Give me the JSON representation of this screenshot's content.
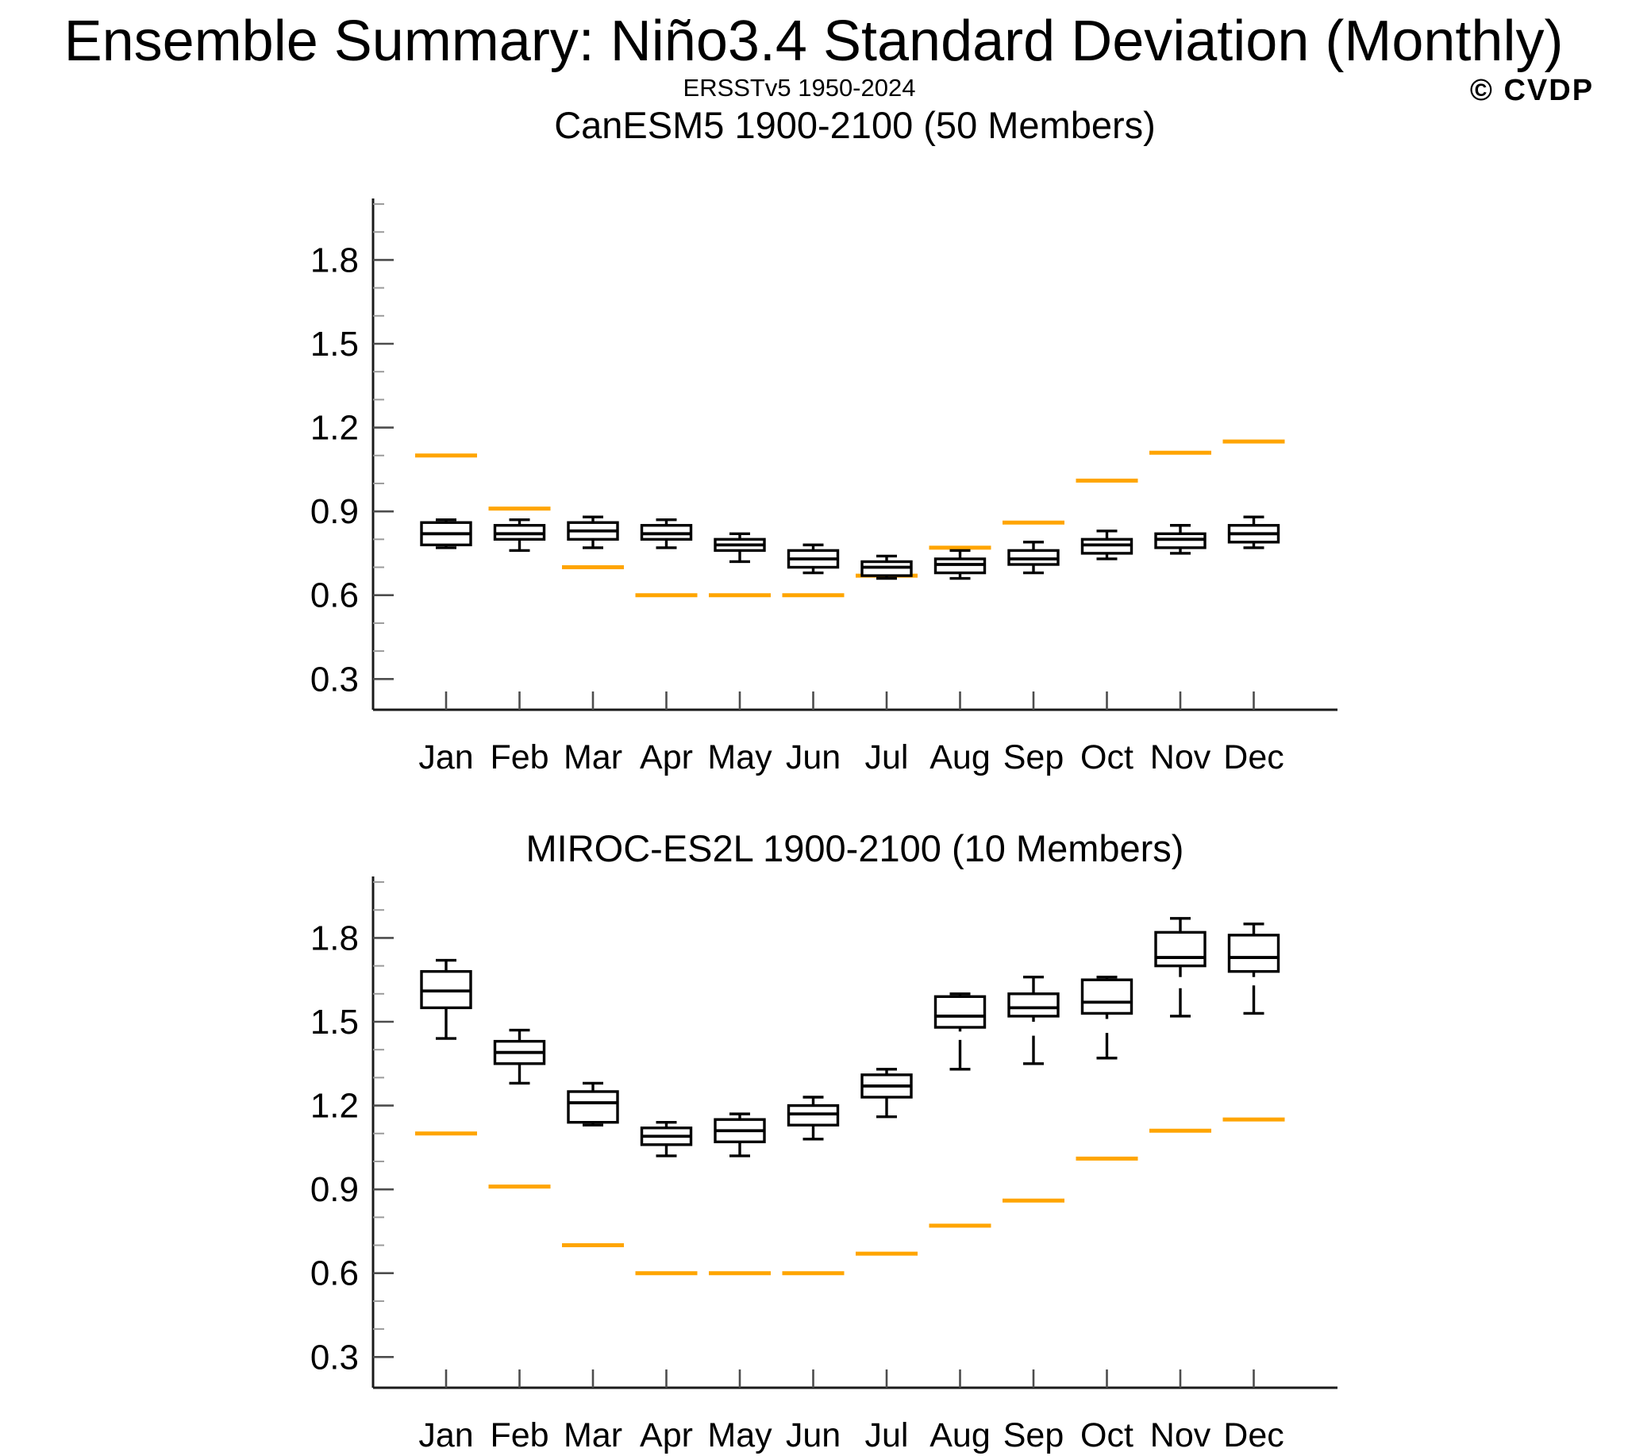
{
  "page": {
    "title": "Ensemble Summary: Niño3.4 Standard Deviation (Monthly)",
    "subtitle": "ERSSTv5 1950-2024",
    "watermark": "© CVDP"
  },
  "colors": {
    "obs_orange": "#FFA500",
    "panel1_title": "#1A6B8F",
    "panel2_title": "#71A177",
    "watermark": "#C9C9C9",
    "axis_line": "#1A1A1A",
    "tick_major": "#4D4D4D",
    "tick_minor": "#9B9B9B",
    "box_stroke": "#000000",
    "label_color": "#000000"
  },
  "months": [
    "Jan",
    "Feb",
    "Mar",
    "Apr",
    "May",
    "Jun",
    "Jul",
    "Aug",
    "Sep",
    "Oct",
    "Nov",
    "Dec"
  ],
  "axis": {
    "ylim": [
      0.19,
      2.02
    ],
    "major_ticks": [
      0.3,
      0.6,
      0.9,
      1.2,
      1.5,
      1.8
    ],
    "major_tick_labels": [
      "0.3",
      "0.6",
      "0.9",
      "1.2",
      "1.5",
      "1.8"
    ],
    "minor_step": 0.1,
    "minor_min": 0.3,
    "minor_max": 2.0
  },
  "chart_data": [
    {
      "type": "boxplot",
      "title": "CanESM5 1900-2100 (50 Members)",
      "title_color_key": "panel1_title",
      "categories": [
        "Jan",
        "Feb",
        "Mar",
        "Apr",
        "May",
        "Jun",
        "Jul",
        "Aug",
        "Sep",
        "Oct",
        "Nov",
        "Dec"
      ],
      "ylabel": "",
      "ylim": [
        0.19,
        2.02
      ],
      "grid": false,
      "boxes": [
        {
          "month": "Jan",
          "min": 0.77,
          "q1": 0.78,
          "median": 0.82,
          "q3": 0.86,
          "max": 0.87,
          "lower_gap": null
        },
        {
          "month": "Feb",
          "min": 0.76,
          "q1": 0.8,
          "median": 0.82,
          "q3": 0.85,
          "max": 0.87,
          "lower_gap": null
        },
        {
          "month": "Mar",
          "min": 0.77,
          "q1": 0.8,
          "median": 0.83,
          "q3": 0.86,
          "max": 0.88,
          "lower_gap": null
        },
        {
          "month": "Apr",
          "min": 0.77,
          "q1": 0.8,
          "median": 0.82,
          "q3": 0.85,
          "max": 0.87,
          "lower_gap": null
        },
        {
          "month": "May",
          "min": 0.72,
          "q1": 0.76,
          "median": 0.78,
          "q3": 0.8,
          "max": 0.82,
          "lower_gap": null
        },
        {
          "month": "Jun",
          "min": 0.68,
          "q1": 0.7,
          "median": 0.73,
          "q3": 0.76,
          "max": 0.78,
          "lower_gap": null
        },
        {
          "month": "Jul",
          "min": 0.66,
          "q1": 0.67,
          "median": 0.7,
          "q3": 0.72,
          "max": 0.74,
          "lower_gap": null
        },
        {
          "month": "Aug",
          "min": 0.66,
          "q1": 0.68,
          "median": 0.71,
          "q3": 0.73,
          "max": 0.76,
          "lower_gap": null
        },
        {
          "month": "Sep",
          "min": 0.68,
          "q1": 0.71,
          "median": 0.73,
          "q3": 0.76,
          "max": 0.79,
          "lower_gap": null
        },
        {
          "month": "Oct",
          "min": 0.73,
          "q1": 0.75,
          "median": 0.78,
          "q3": 0.8,
          "max": 0.83,
          "lower_gap": null
        },
        {
          "month": "Nov",
          "min": 0.75,
          "q1": 0.77,
          "median": 0.8,
          "q3": 0.82,
          "max": 0.85,
          "lower_gap": null
        },
        {
          "month": "Dec",
          "min": 0.77,
          "q1": 0.79,
          "median": 0.82,
          "q3": 0.85,
          "max": 0.88,
          "lower_gap": null
        }
      ],
      "obs_overlay": {
        "label": "ERSSTv5 1950-2024",
        "values": [
          1.1,
          0.91,
          0.7,
          0.6,
          0.6,
          0.6,
          0.67,
          0.77,
          0.86,
          1.01,
          1.11,
          1.15
        ]
      }
    },
    {
      "type": "boxplot",
      "title": "MIROC-ES2L 1900-2100 (10 Members)",
      "title_color_key": "panel2_title",
      "categories": [
        "Jan",
        "Feb",
        "Mar",
        "Apr",
        "May",
        "Jun",
        "Jul",
        "Aug",
        "Sep",
        "Oct",
        "Nov",
        "Dec"
      ],
      "ylabel": "",
      "ylim": [
        0.19,
        2.02
      ],
      "grid": false,
      "boxes": [
        {
          "month": "Jan",
          "min": 1.44,
          "q1": 1.55,
          "median": 1.61,
          "q3": 1.68,
          "max": 1.72,
          "lower_gap": null
        },
        {
          "month": "Feb",
          "min": 1.28,
          "q1": 1.35,
          "median": 1.39,
          "q3": 1.43,
          "max": 1.47,
          "lower_gap": null
        },
        {
          "month": "Mar",
          "min": 1.13,
          "q1": 1.14,
          "median": 1.21,
          "q3": 1.25,
          "max": 1.28,
          "lower_gap": null
        },
        {
          "month": "Apr",
          "min": 1.02,
          "q1": 1.06,
          "median": 1.09,
          "q3": 1.12,
          "max": 1.14,
          "lower_gap": null
        },
        {
          "month": "May",
          "min": 1.02,
          "q1": 1.07,
          "median": 1.11,
          "q3": 1.15,
          "max": 1.17,
          "lower_gap": null
        },
        {
          "month": "Jun",
          "min": 1.08,
          "q1": 1.13,
          "median": 1.17,
          "q3": 1.2,
          "max": 1.23,
          "lower_gap": null
        },
        {
          "month": "Jul",
          "min": 1.16,
          "q1": 1.23,
          "median": 1.27,
          "q3": 1.31,
          "max": 1.33,
          "lower_gap": null
        },
        {
          "month": "Aug",
          "min": 1.33,
          "q1": 1.48,
          "median": 1.52,
          "q3": 1.59,
          "max": 1.6,
          "lower_gap": [
            1.465,
            1.435
          ]
        },
        {
          "month": "Sep",
          "min": 1.35,
          "q1": 1.52,
          "median": 1.55,
          "q3": 1.6,
          "max": 1.66,
          "lower_gap": [
            1.5,
            1.45
          ]
        },
        {
          "month": "Oct",
          "min": 1.37,
          "q1": 1.53,
          "median": 1.57,
          "q3": 1.65,
          "max": 1.66,
          "lower_gap": [
            1.51,
            1.46
          ]
        },
        {
          "month": "Nov",
          "min": 1.52,
          "q1": 1.7,
          "median": 1.73,
          "q3": 1.82,
          "max": 1.87,
          "lower_gap": [
            1.66,
            1.62
          ]
        },
        {
          "month": "Dec",
          "min": 1.53,
          "q1": 1.68,
          "median": 1.73,
          "q3": 1.81,
          "max": 1.85,
          "lower_gap": [
            1.66,
            1.63
          ]
        }
      ],
      "obs_overlay": {
        "label": "ERSSTv5 1950-2024",
        "values": [
          1.1,
          0.91,
          0.7,
          0.6,
          0.6,
          0.6,
          0.67,
          0.77,
          0.86,
          1.01,
          1.11,
          1.15
        ]
      }
    }
  ],
  "layout_note": "two stacked box-whisker panels, shared month axis, orange observation dashes"
}
